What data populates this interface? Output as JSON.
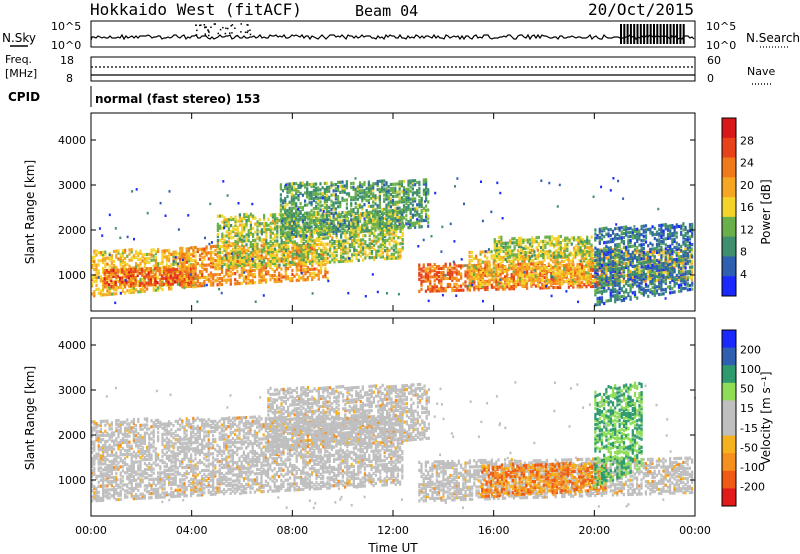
{
  "header": {
    "title": "Hokkaido West (fitACF)",
    "beam": "Beam 04",
    "date": "20/Oct/2015"
  },
  "top_strip": {
    "left_label": "N.Sky",
    "right_label": "N.Search",
    "left_ticks": [
      "10^5",
      "10^0"
    ],
    "right_ticks": [
      "10^5",
      "10^0"
    ]
  },
  "freq_strip": {
    "left_label_1": "Freq.",
    "left_label_2": "[MHz]",
    "left_ticks": [
      "18",
      "8"
    ],
    "right_ticks": [
      "60",
      "0"
    ],
    "right_label": "Nave"
  },
  "cpid": {
    "label": "CPID",
    "value": "normal (fast stereo) 153"
  },
  "colors": {
    "power_scale": [
      "#1a2aff",
      "#2f5fb0",
      "#3f8f6f",
      "#6ab04a",
      "#f4d42a",
      "#f5a623",
      "#ef7a1a",
      "#e8421a",
      "#d9181a"
    ],
    "velocity_scale": [
      "#e21a1a",
      "#f05a14",
      "#f5901f",
      "#f5b21e",
      "#bfbfbf",
      "#bfbfbf",
      "#8fdc57",
      "#2f9a6e",
      "#2f5fb0",
      "#1a2aff"
    ],
    "ground_scatter": "#bfbfbf"
  },
  "chart_data": [
    {
      "type": "heatmap",
      "name": "power-panel",
      "ylabel": "Slant Range [km]",
      "yticks": [
        "1000",
        "2000",
        "3000",
        "4000"
      ],
      "ylim": [
        200,
        4600
      ],
      "xlim": [
        0,
        24
      ],
      "colorbar": {
        "label": "Power [dB]",
        "ticks": [
          "4",
          "8",
          "12",
          "16",
          "20",
          "24",
          "28"
        ],
        "range": [
          0,
          32
        ]
      },
      "bands": [
        {
          "hour_start": 0,
          "hour_end": 4.2,
          "r_low": 500,
          "r_high": 1500,
          "level": 18
        },
        {
          "hour_start": 0.5,
          "hour_end": 4.0,
          "r_low": 700,
          "r_high": 1100,
          "level": 26
        },
        {
          "hour_start": 3.5,
          "hour_end": 9.5,
          "r_low": 700,
          "r_high": 1600,
          "level": 22
        },
        {
          "hour_start": 5.0,
          "hour_end": 12.5,
          "r_low": 1100,
          "r_high": 2300,
          "level": 14
        },
        {
          "hour_start": 7.5,
          "hour_end": 13.5,
          "r_low": 1800,
          "r_high": 3000,
          "level": 10
        },
        {
          "hour_start": 13.0,
          "hour_end": 21.0,
          "r_low": 600,
          "r_high": 1200,
          "level": 25
        },
        {
          "hour_start": 15.0,
          "hour_end": 24.0,
          "r_low": 700,
          "r_high": 1500,
          "level": 18
        },
        {
          "hour_start": 16.0,
          "hour_end": 20.0,
          "r_low": 1300,
          "r_high": 1800,
          "level": 14
        },
        {
          "hour_start": 20.0,
          "hour_end": 24.0,
          "r_low": 300,
          "r_high": 2000,
          "level": 6
        }
      ]
    },
    {
      "type": "heatmap",
      "name": "velocity-panel",
      "ylabel": "Slant Range [km]",
      "xlabel": "Time UT",
      "yticks": [
        "1000",
        "2000",
        "3000",
        "4000"
      ],
      "xticks": [
        "00:00",
        "04:00",
        "08:00",
        "12:00",
        "16:00",
        "20:00",
        "00:00"
      ],
      "ylim": [
        200,
        4600
      ],
      "xlim": [
        0,
        24
      ],
      "colorbar": {
        "label": "Velocity [m s⁻¹]",
        "ticks": [
          "-200",
          "-100",
          "-50",
          "-15",
          "15",
          "50",
          "100",
          "200"
        ]
      },
      "bands": [
        {
          "hour_start": 0,
          "hour_end": 12.5,
          "r_low": 500,
          "r_high": 2300,
          "class": "ground"
        },
        {
          "hour_start": 7.0,
          "hour_end": 13.5,
          "r_low": 1600,
          "r_high": 3000,
          "class": "ground"
        },
        {
          "hour_start": 13.0,
          "hour_end": 24.0,
          "r_low": 500,
          "r_high": 1400,
          "class": "ground"
        },
        {
          "hour_start": 15.5,
          "hour_end": 20.5,
          "r_low": 600,
          "r_high": 1300,
          "class": "orange"
        },
        {
          "hour_start": 20.0,
          "hour_end": 22.0,
          "r_low": 800,
          "r_high": 3000,
          "class": "green"
        }
      ]
    }
  ]
}
